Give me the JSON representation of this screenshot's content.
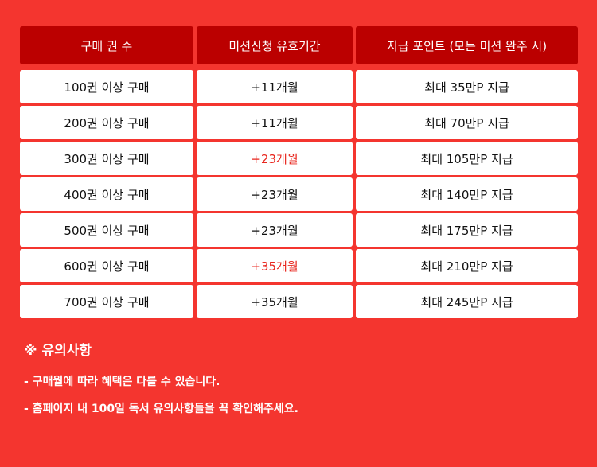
{
  "header": [
    "구매 권 수",
    "미션신청 유효기간",
    "지급 포인트 (모든 미션 완주 시)"
  ],
  "rows": [
    {
      "books": "100권 이상 구매",
      "period": "+11개월",
      "points": "최대 35만P 지급",
      "highlight": false
    },
    {
      "books": "200권 이상 구매",
      "period": "+11개월",
      "points": "최대 70만P 지급",
      "highlight": false
    },
    {
      "books": "300권 이상 구매",
      "period": "+23개월",
      "points": "최대 105만P 지급",
      "highlight": true
    },
    {
      "books": "400권 이상 구매",
      "period": "+23개월",
      "points": "최대 140만P 지급",
      "highlight": false
    },
    {
      "books": "500권 이상 구매",
      "period": "+23개월",
      "points": "최대 175만P 지급",
      "highlight": false
    },
    {
      "books": "600권 이상 구매",
      "period": "+35개월",
      "points": "최대 210만P 지급",
      "highlight": true
    },
    {
      "books": "700권 이상 구매",
      "period": "+35개월",
      "points": "최대 245만P 지급",
      "highlight": false
    }
  ],
  "notes": {
    "title": "※ 유의사항",
    "lines": [
      "- 구매월에 따라 혜택은 다를 수 있습니다.",
      "- 홈페이지 내 100일 독서 유의사항들을 꼭 확인해주세요."
    ]
  },
  "colors": {
    "background": "#f4352f",
    "header": "#bb0000",
    "highlight": "#e8261e"
  }
}
